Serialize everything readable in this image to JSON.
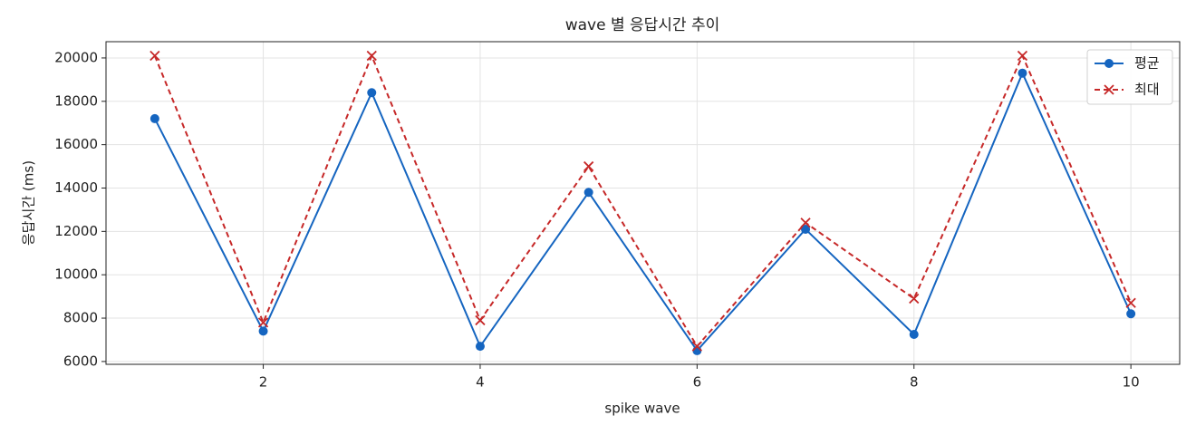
{
  "chart_data": {
    "type": "line",
    "title": "wave 별 응답시간 추이",
    "x_label": "spike wave",
    "y_label": "응답시간 (ms)",
    "x": [
      1,
      2,
      3,
      4,
      5,
      6,
      7,
      8,
      9,
      10
    ],
    "series": [
      {
        "name": "평균",
        "color": "#1565c0",
        "marker": "circle",
        "dash": "solid",
        "values": [
          17200,
          7400,
          18400,
          6700,
          13800,
          6500,
          12100,
          7250,
          19300,
          8200
        ]
      },
      {
        "name": "최대",
        "color": "#c62828",
        "marker": "x",
        "dash": "dashed",
        "values": [
          20100,
          7800,
          20100,
          7900,
          15000,
          6700,
          12400,
          8900,
          20100,
          8700
        ]
      }
    ],
    "xlim": [
      0.55,
      10.45
    ],
    "xticks": [
      2,
      4,
      6,
      8,
      10
    ],
    "ylim": [
      5870,
      20750
    ],
    "yticks": [
      6000,
      8000,
      10000,
      12000,
      14000,
      16000,
      18000,
      20000
    ],
    "grid": true,
    "legend": "upper right"
  }
}
